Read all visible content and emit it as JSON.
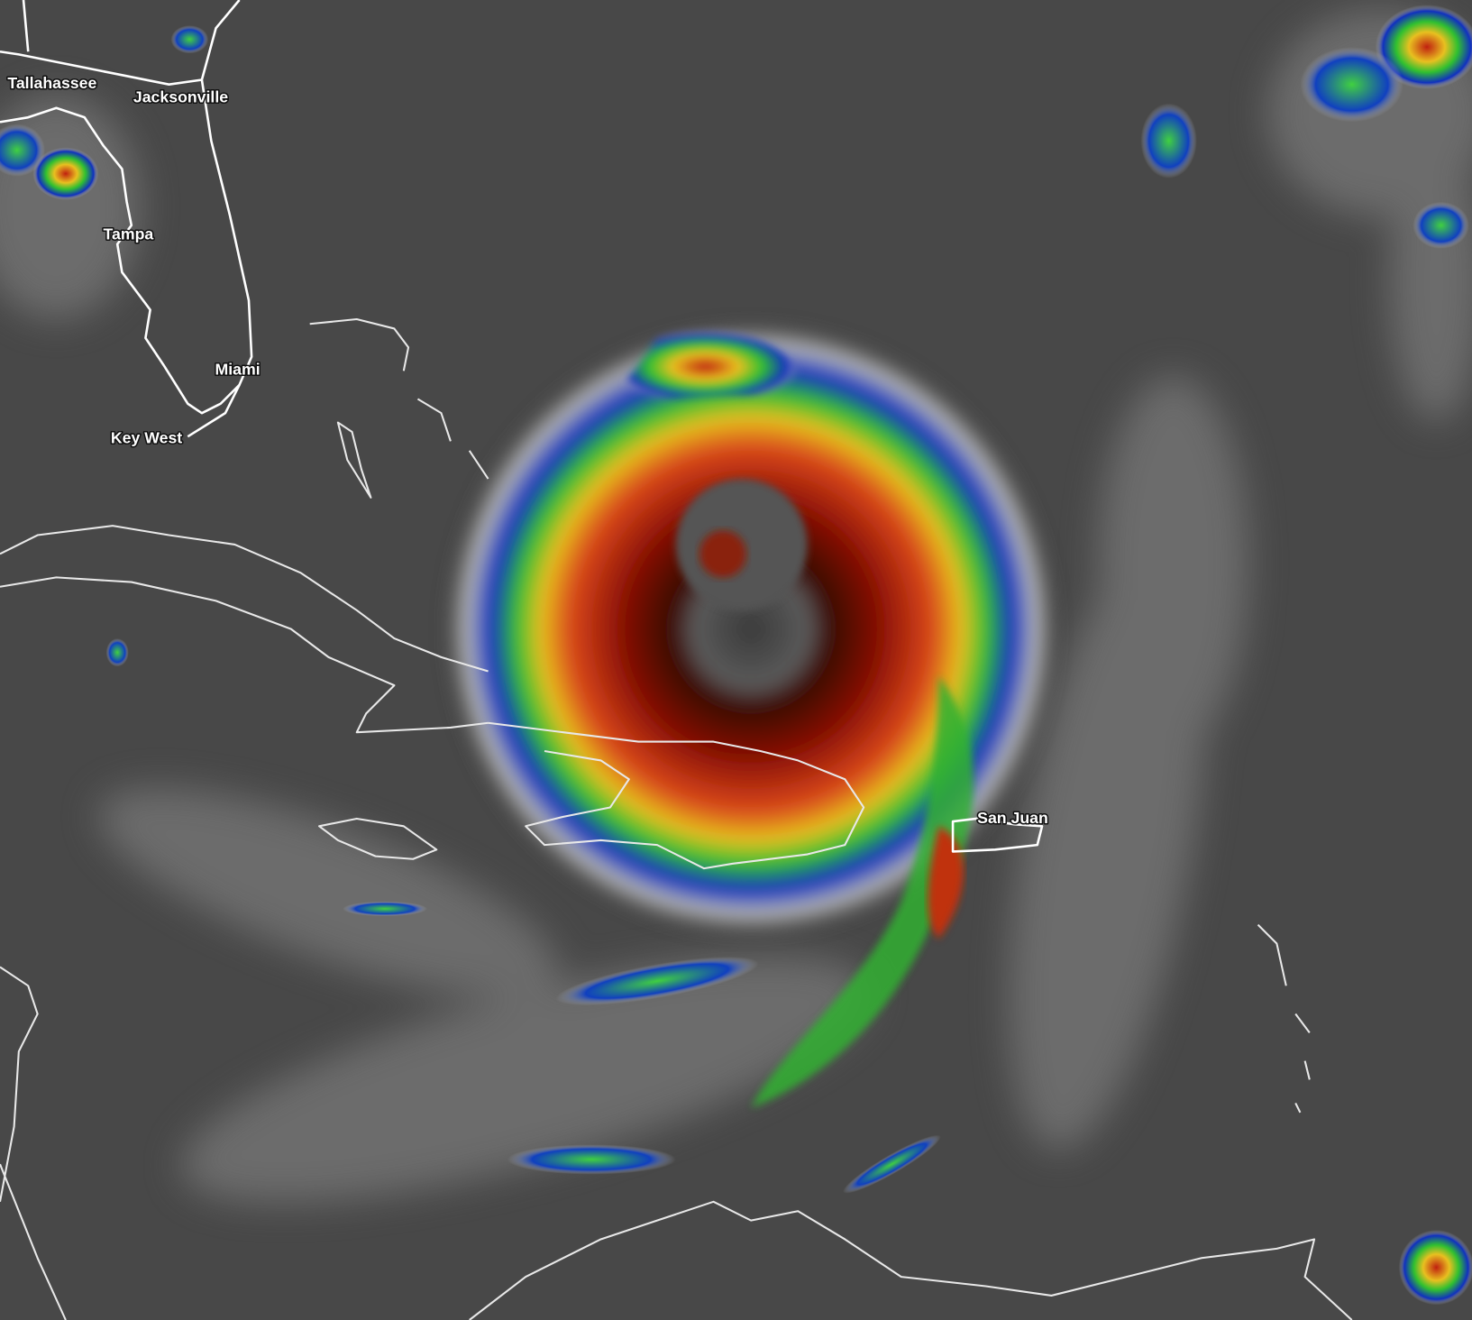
{
  "map": {
    "type": "infrared satellite imagery",
    "colors": {
      "background": "#484848",
      "cloud_cold_top_red": "#8b0f05",
      "cloud_orange": "#e0501a",
      "cloud_yellow": "#e8d020",
      "cloud_green": "#30c030",
      "cloud_blue": "#1030c0",
      "eye_gray": "#2a2a2a",
      "coastline": "#ffffff"
    },
    "cities": [
      {
        "label": "Tallahassee"
      },
      {
        "label": "Jacksonville"
      },
      {
        "label": "Tampa"
      },
      {
        "label": "Miami"
      },
      {
        "label": "Key West"
      },
      {
        "label": "San Juan"
      }
    ]
  }
}
